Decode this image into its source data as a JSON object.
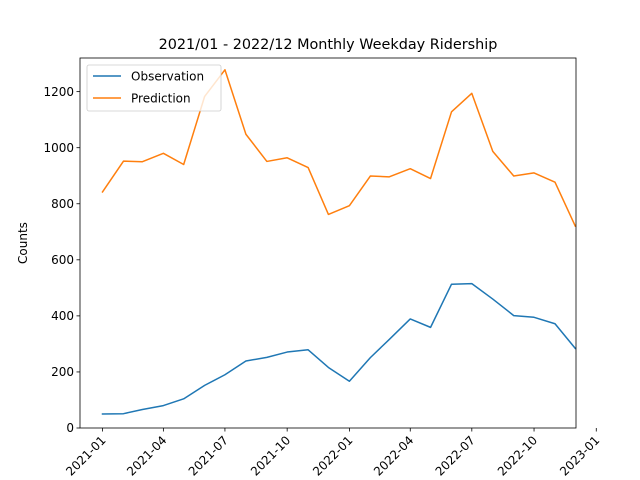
{
  "chart_data": {
    "type": "line",
    "title": "2021/01 - 2022/12 Monthly Weekday Ridership",
    "xlabel": "",
    "ylabel": "Counts",
    "x": [
      "2021-01",
      "2021-02",
      "2021-03",
      "2021-04",
      "2021-05",
      "2021-06",
      "2021-07",
      "2021-08",
      "2021-09",
      "2021-10",
      "2021-11",
      "2021-12",
      "2022-01",
      "2022-02",
      "2022-03",
      "2022-04",
      "2022-05",
      "2022-06",
      "2022-07",
      "2022-08",
      "2022-09",
      "2022-10",
      "2022-11",
      "2022-12"
    ],
    "x_ticks": [
      "2021-01",
      "2021-04",
      "2021-07",
      "2021-10",
      "2022-01",
      "2022-04",
      "2022-07",
      "2022-10",
      "2023-01"
    ],
    "ylim": [
      0,
      1320
    ],
    "y_ticks": [
      0,
      200,
      400,
      600,
      800,
      1000,
      1200
    ],
    "legend_position": "top-left",
    "grid": false,
    "series": [
      {
        "name": "Observation",
        "color": "#1f77b4",
        "values": [
          50,
          51,
          66,
          80,
          104,
          152,
          190,
          239,
          252,
          271,
          279,
          216,
          167,
          251,
          316,
          389,
          359,
          513,
          515,
          460,
          401,
          395,
          372,
          284
        ]
      },
      {
        "name": "Prediction",
        "color": "#ff7f0e",
        "values": [
          842,
          952,
          950,
          980,
          940,
          1183,
          1278,
          1048,
          951,
          964,
          929,
          762,
          793,
          899,
          896,
          925,
          890,
          1128,
          1194,
          987,
          899,
          910,
          877,
          720
        ]
      }
    ]
  }
}
